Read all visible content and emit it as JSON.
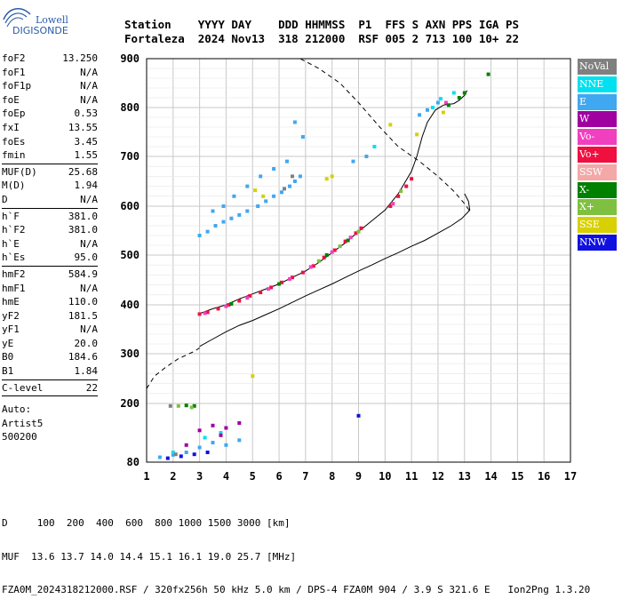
{
  "logo": {
    "line1": "Lowell",
    "line2": "DIGISONDE"
  },
  "header": {
    "labels": [
      "Station",
      "YYYY",
      "DAY",
      "DDD",
      "HHMMSS",
      "P1",
      "FFS",
      "S",
      "AXN",
      "PPS",
      "IGA",
      "PS"
    ],
    "values": [
      "Fortaleza",
      "2024",
      "Nov13",
      "318",
      "212000",
      "RSF",
      "005",
      "2",
      "713",
      "100",
      "10+",
      "22"
    ]
  },
  "params": {
    "group1": [
      {
        "name": "foF2",
        "value": "13.250"
      },
      {
        "name": "foF1",
        "value": "N/A"
      },
      {
        "name": "foF1p",
        "value": "N/A"
      },
      {
        "name": "foE",
        "value": "N/A"
      },
      {
        "name": "foEp",
        "value": "0.53"
      },
      {
        "name": "fxI",
        "value": "13.55"
      },
      {
        "name": "foEs",
        "value": "3.45"
      },
      {
        "name": "fmin",
        "value": "1.55"
      }
    ],
    "group2": [
      {
        "name": "MUF(D)",
        "value": "25.68"
      },
      {
        "name": "M(D)",
        "value": "1.94"
      },
      {
        "name": "D",
        "value": "N/A"
      }
    ],
    "group3": [
      {
        "name": "h`F",
        "value": "381.0"
      },
      {
        "name": "h`F2",
        "value": "381.0"
      },
      {
        "name": "h`E",
        "value": "N/A"
      },
      {
        "name": "h`Es",
        "value": "95.0"
      }
    ],
    "group4": [
      {
        "name": "hmF2",
        "value": "584.9"
      },
      {
        "name": "hmF1",
        "value": "N/A"
      },
      {
        "name": "hmE",
        "value": "110.0"
      },
      {
        "name": "yF2",
        "value": "181.5"
      },
      {
        "name": "yF1",
        "value": "N/A"
      },
      {
        "name": "yE",
        "value": "20.0"
      },
      {
        "name": "B0",
        "value": "184.6"
      },
      {
        "name": "B1",
        "value": "1.84"
      }
    ],
    "group5": [
      {
        "name": "C-level",
        "value": "22"
      }
    ],
    "autoscaling": [
      "Auto:",
      "Artist5",
      "500200"
    ]
  },
  "legend": [
    {
      "label": "NoVal",
      "color": "#808080"
    },
    {
      "label": "NNE",
      "color": "#00e0f0"
    },
    {
      "label": "E",
      "color": "#40a8f0"
    },
    {
      "label": "W",
      "color": "#a000a0"
    },
    {
      "label": "Vo-",
      "color": "#f040c0"
    },
    {
      "label": "Vo+",
      "color": "#f01040"
    },
    {
      "label": "SSW",
      "color": "#f4a8a8"
    },
    {
      "label": "X-",
      "color": "#008000"
    },
    {
      "label": "X+",
      "color": "#80c040"
    },
    {
      "label": "SSE",
      "color": "#d8d000"
    },
    {
      "label": "NNW",
      "color": "#1010e0"
    }
  ],
  "footer": {
    "line1": "D     100  200  400  600  800 1000 1500 3000 [km]",
    "line2": "MUF  13.6 13.7 14.0 14.4 15.1 16.1 19.0 25.7 [MHz]",
    "line3": "FZA0M_2024318212000.RSF / 320fx256h 50 kHz 5.0 km / DPS-4 FZA0M 904 / 3.9 S 321.6 E   Ion2Png 1.3.20"
  },
  "chart_data": {
    "type": "scatter",
    "title": "",
    "xlabel": "",
    "ylabel": "",
    "xlim": [
      1,
      17
    ],
    "ylim": [
      80,
      900
    ],
    "xticks": [
      1,
      2,
      3,
      4,
      5,
      6,
      7,
      8,
      9,
      10,
      11,
      12,
      13,
      14,
      15,
      16,
      17
    ],
    "yticks": [
      80,
      200,
      300,
      400,
      500,
      600,
      700,
      800,
      900
    ],
    "grid": true,
    "legend_position": "right",
    "series": [
      {
        "category": "Vo+",
        "color": "#f01040",
        "points": [
          [
            3.0,
            381
          ],
          [
            3.3,
            385
          ],
          [
            3.7,
            392
          ],
          [
            4.1,
            400
          ],
          [
            4.5,
            408
          ],
          [
            4.9,
            418
          ],
          [
            5.3,
            425
          ],
          [
            5.7,
            435
          ],
          [
            6.1,
            445
          ],
          [
            6.5,
            455
          ],
          [
            6.9,
            465
          ],
          [
            7.3,
            478
          ],
          [
            7.7,
            495
          ],
          [
            8.1,
            510
          ],
          [
            8.5,
            528
          ],
          [
            8.9,
            545
          ],
          [
            9.1,
            555
          ],
          [
            10.2,
            600
          ],
          [
            10.5,
            620
          ],
          [
            10.8,
            640
          ],
          [
            11.0,
            655
          ]
        ]
      },
      {
        "category": "Vo-",
        "color": "#f040c0",
        "points": [
          [
            3.2,
            383
          ],
          [
            4.0,
            397
          ],
          [
            4.8,
            414
          ],
          [
            5.6,
            432
          ],
          [
            6.4,
            452
          ],
          [
            7.2,
            476
          ],
          [
            8.0,
            506
          ],
          [
            8.7,
            536
          ],
          [
            10.3,
            605
          ],
          [
            12.3,
            810
          ]
        ]
      },
      {
        "category": "X-",
        "color": "#008000",
        "points": [
          [
            4.2,
            402
          ],
          [
            6.0,
            442
          ],
          [
            7.8,
            500
          ],
          [
            8.6,
            530
          ],
          [
            12.4,
            805
          ],
          [
            12.8,
            820
          ],
          [
            13.0,
            830
          ],
          [
            13.9,
            868
          ],
          [
            2.5,
            196
          ],
          [
            2.8,
            195
          ]
        ]
      },
      {
        "category": "X+",
        "color": "#80c040",
        "points": [
          [
            7.5,
            488
          ],
          [
            8.3,
            518
          ],
          [
            9.0,
            548
          ],
          [
            10.6,
            630
          ],
          [
            2.2,
            195
          ],
          [
            2.7,
            192
          ]
        ]
      },
      {
        "category": "E",
        "color": "#40a8f0",
        "points": [
          [
            3.0,
            540
          ],
          [
            3.3,
            548
          ],
          [
            3.6,
            560
          ],
          [
            3.9,
            568
          ],
          [
            4.2,
            575
          ],
          [
            4.5,
            582
          ],
          [
            4.8,
            590
          ],
          [
            5.2,
            600
          ],
          [
            5.5,
            610
          ],
          [
            5.8,
            620
          ],
          [
            6.1,
            628
          ],
          [
            6.4,
            640
          ],
          [
            6.6,
            650
          ],
          [
            6.8,
            660
          ],
          [
            3.5,
            590
          ],
          [
            3.9,
            600
          ],
          [
            4.3,
            620
          ],
          [
            4.8,
            640
          ],
          [
            5.3,
            660
          ],
          [
            5.8,
            675
          ],
          [
            6.3,
            690
          ],
          [
            6.6,
            770
          ],
          [
            6.9,
            740
          ],
          [
            8.8,
            690
          ],
          [
            9.3,
            700
          ],
          [
            11.3,
            785
          ],
          [
            11.6,
            795
          ],
          [
            12.0,
            810
          ],
          [
            1.5,
            90
          ],
          [
            2.0,
            95
          ],
          [
            2.5,
            100
          ],
          [
            3.0,
            110
          ],
          [
            3.5,
            120
          ],
          [
            4.0,
            115
          ],
          [
            4.5,
            125
          ]
        ]
      },
      {
        "category": "NNE",
        "color": "#00e0f0",
        "points": [
          [
            11.8,
            800
          ],
          [
            12.1,
            818
          ],
          [
            12.6,
            830
          ],
          [
            9.6,
            720
          ],
          [
            2.0,
            100
          ],
          [
            3.2,
            130
          ],
          [
            3.8,
            140
          ]
        ]
      },
      {
        "category": "SSE",
        "color": "#d8d000",
        "points": [
          [
            5.1,
            632
          ],
          [
            5.4,
            620
          ],
          [
            7.8,
            655
          ],
          [
            8.0,
            660
          ],
          [
            10.2,
            765
          ],
          [
            11.2,
            745
          ],
          [
            12.2,
            790
          ],
          [
            5.0,
            255
          ]
        ]
      },
      {
        "category": "W",
        "color": "#a000a0",
        "points": [
          [
            3.0,
            145
          ],
          [
            3.5,
            155
          ],
          [
            4.0,
            150
          ],
          [
            4.5,
            160
          ],
          [
            2.5,
            115
          ],
          [
            3.8,
            135
          ]
        ]
      },
      {
        "category": "NNW",
        "color": "#1010e0",
        "points": [
          [
            1.8,
            88
          ],
          [
            2.3,
            92
          ],
          [
            2.8,
            96
          ],
          [
            3.3,
            100
          ],
          [
            9.0,
            175
          ]
        ]
      },
      {
        "category": "NoVal",
        "color": "#808080",
        "points": [
          [
            6.2,
            635
          ],
          [
            6.5,
            660
          ],
          [
            1.9,
            195
          ],
          [
            2.1,
            96
          ]
        ]
      }
    ],
    "profile": [
      [
        3.0,
        382
      ],
      [
        3.5,
        392
      ],
      [
        4.0,
        400
      ],
      [
        4.5,
        412
      ],
      [
        5.0,
        422
      ],
      [
        5.5,
        432
      ],
      [
        6.0,
        442
      ],
      [
        6.5,
        455
      ],
      [
        7.0,
        468
      ],
      [
        7.5,
        485
      ],
      [
        8.0,
        505
      ],
      [
        8.5,
        525
      ],
      [
        9.0,
        548
      ],
      [
        9.5,
        570
      ],
      [
        10.0,
        592
      ],
      [
        10.5,
        625
      ],
      [
        11.0,
        670
      ],
      [
        11.2,
        700
      ],
      [
        11.4,
        740
      ],
      [
        11.6,
        770
      ],
      [
        11.9,
        795
      ],
      [
        12.2,
        805
      ],
      [
        12.6,
        808
      ],
      [
        12.8,
        815
      ],
      [
        13.0,
        825
      ],
      [
        13.1,
        835
      ]
    ],
    "xray_trace": [
      [
        3.0,
        315
      ],
      [
        3.5,
        330
      ],
      [
        4.0,
        345
      ],
      [
        4.5,
        358
      ],
      [
        5.0,
        368
      ],
      [
        5.5,
        380
      ],
      [
        6.0,
        392
      ],
      [
        6.5,
        405
      ],
      [
        7.0,
        418
      ],
      [
        7.5,
        430
      ],
      [
        8.0,
        442
      ],
      [
        8.5,
        455
      ],
      [
        9.0,
        468
      ],
      [
        9.5,
        480
      ],
      [
        10.0,
        493
      ],
      [
        10.5,
        505
      ],
      [
        11.0,
        518
      ],
      [
        11.5,
        530
      ],
      [
        12.0,
        545
      ],
      [
        12.5,
        560
      ],
      [
        12.9,
        575
      ],
      [
        13.2,
        592
      ],
      [
        13.15,
        610
      ],
      [
        13.0,
        625
      ]
    ],
    "model_dashed": [
      [
        1.0,
        230
      ],
      [
        1.3,
        255
      ],
      [
        1.7,
        272
      ],
      [
        2.2,
        290
      ],
      [
        2.8,
        305
      ],
      [
        3.0,
        312
      ],
      [
        5.0,
        900
      ],
      [
        6.8,
        900
      ],
      [
        7.5,
        880
      ],
      [
        8.3,
        850
      ],
      [
        9.0,
        810
      ],
      [
        9.8,
        760
      ],
      [
        10.5,
        720
      ],
      [
        11.3,
        690
      ],
      [
        12.0,
        660
      ],
      [
        12.6,
        630
      ],
      [
        13.0,
        605
      ],
      [
        13.2,
        590
      ]
    ]
  }
}
